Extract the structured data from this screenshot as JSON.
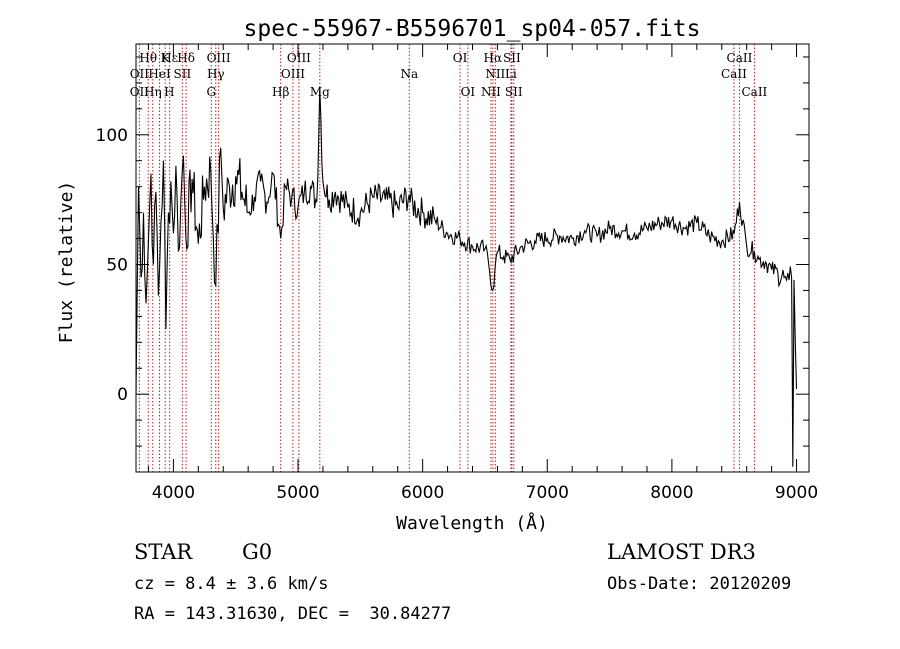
{
  "chart_data": {
    "type": "line",
    "title": "spec-55967-B5596701_sp04-057.fits",
    "xlabel": "Wavelength (Å)",
    "ylabel": "Flux (relative)",
    "xlim": [
      3700,
      9100
    ],
    "ylim": [
      -30,
      135
    ],
    "xticks": [
      4000,
      5000,
      6000,
      7000,
      8000,
      9000
    ],
    "xtick_labels": [
      "4000",
      "5000",
      "6000",
      "7000",
      "8000",
      "9000"
    ],
    "yticks": [
      0,
      50,
      100
    ],
    "ytick_labels": [
      "0",
      "50",
      "100"
    ],
    "grid": false,
    "series": [
      {
        "name": "flux",
        "x": [
          3700,
          3720,
          3740,
          3760,
          3780,
          3800,
          3820,
          3840,
          3860,
          3880,
          3900,
          3920,
          3940,
          3960,
          3980,
          4000,
          4020,
          4040,
          4060,
          4080,
          4100,
          4150,
          4200,
          4250,
          4300,
          4340,
          4380,
          4400,
          4450,
          4500,
          4550,
          4600,
          4650,
          4700,
          4750,
          4800,
          4861,
          4900,
          4950,
          5000,
          5050,
          5100,
          5150,
          5175,
          5200,
          5250,
          5300,
          5400,
          5500,
          5600,
          5700,
          5800,
          5893,
          5900,
          6000,
          6100,
          6200,
          6300,
          6400,
          6500,
          6530,
          6563,
          6580,
          6600,
          6650,
          6700,
          6800,
          6900,
          7000,
          7100,
          7200,
          7300,
          7400,
          7500,
          7600,
          7700,
          7800,
          7900,
          8000,
          8100,
          8200,
          8300,
          8400,
          8500,
          8542,
          8600,
          8662,
          8700,
          8750,
          8800,
          8850,
          8900,
          8920,
          8940,
          8960,
          8970,
          8980,
          9000
        ],
        "values": [
          0,
          80,
          45,
          70,
          35,
          60,
          85,
          50,
          78,
          38,
          66,
          90,
          25,
          70,
          82,
          62,
          88,
          55,
          75,
          92,
          60,
          83,
          58,
          80,
          86,
          42,
          95,
          72,
          80,
          84,
          78,
          70,
          76,
          82,
          74,
          85,
          60,
          80,
          76,
          72,
          78,
          80,
          74,
          118,
          82,
          75,
          78,
          72,
          70,
          76,
          75,
          72,
          77,
          74,
          70,
          67,
          62,
          60,
          57,
          56,
          50,
          40,
          48,
          55,
          53,
          52,
          57,
          59,
          60,
          61,
          60,
          63,
          61,
          64,
          63,
          62,
          64,
          66,
          67,
          64,
          66,
          61,
          59,
          62,
          74,
          57,
          55,
          52,
          51,
          48,
          47,
          45,
          44,
          44,
          45,
          -28,
          44,
          2
        ]
      }
    ],
    "line_labels": [
      {
        "name": "Hθ",
        "wavelength": 3798,
        "row": 1
      },
      {
        "name": "OII",
        "wavelength": 3727,
        "row": 2
      },
      {
        "name": "OII",
        "wavelength": 3727,
        "row": 3
      },
      {
        "name": "Hε",
        "wavelength": 3970,
        "row": 1
      },
      {
        "name": "K",
        "wavelength": 3934,
        "row": 1
      },
      {
        "name": "HeI",
        "wavelength": 3889,
        "row": 2
      },
      {
        "name": "Hη",
        "wavelength": 3835,
        "row": 3
      },
      {
        "name": "SII",
        "wavelength": 4072,
        "row": 2
      },
      {
        "name": "H",
        "wavelength": 3968,
        "row": 3
      },
      {
        "name": "Hδ",
        "wavelength": 4102,
        "row": 1
      },
      {
        "name": "OIII",
        "wavelength": 4363,
        "row": 1
      },
      {
        "name": "Hγ",
        "wavelength": 4340,
        "row": 2
      },
      {
        "name": "G",
        "wavelength": 4304,
        "row": 3
      },
      {
        "name": "Hβ",
        "wavelength": 4861,
        "row": 3
      },
      {
        "name": "OIII",
        "wavelength": 5007,
        "row": 1
      },
      {
        "name": "OIII",
        "wavelength": 4959,
        "row": 2
      },
      {
        "name": "Mg",
        "wavelength": 5175,
        "row": 3
      },
      {
        "name": "Na",
        "wavelength": 5893,
        "row": 2
      },
      {
        "name": "OI",
        "wavelength": 6300,
        "row": 1
      },
      {
        "name": "OI",
        "wavelength": 6363,
        "row": 3
      },
      {
        "name": "Hα",
        "wavelength": 6563,
        "row": 1
      },
      {
        "name": "SII",
        "wavelength": 6716,
        "row": 1
      },
      {
        "name": "NII",
        "wavelength": 6583,
        "row": 2
      },
      {
        "name": "Li",
        "wavelength": 6708,
        "row": 2
      },
      {
        "name": "NII",
        "wavelength": 6548,
        "row": 3
      },
      {
        "name": "SII",
        "wavelength": 6731,
        "row": 3
      },
      {
        "name": "CaII",
        "wavelength": 8542,
        "row": 1
      },
      {
        "name": "CaII",
        "wavelength": 8498,
        "row": 2
      },
      {
        "name": "CaII",
        "wavelength": 8662,
        "row": 3
      }
    ],
    "line_markers": [
      3727,
      3798,
      3835,
      3889,
      3934,
      3970,
      4072,
      4102,
      4304,
      4340,
      4363,
      4861,
      4959,
      5007,
      5175,
      5893,
      6300,
      6363,
      6548,
      6563,
      6583,
      6708,
      6716,
      6731,
      8498,
      8542,
      8662
    ],
    "colors": {
      "spectrum": "#000000",
      "markers": "#b22222",
      "axes": "#000000"
    }
  },
  "info": {
    "object_class": "STAR",
    "subclass": "G0",
    "survey": "LAMOST DR3",
    "redshift": "cz = 8.4 ± 3.6 km/s",
    "obs_date": "Obs-Date: 20120209",
    "coords": "RA = 143.31630, DEC =  30.84277"
  }
}
